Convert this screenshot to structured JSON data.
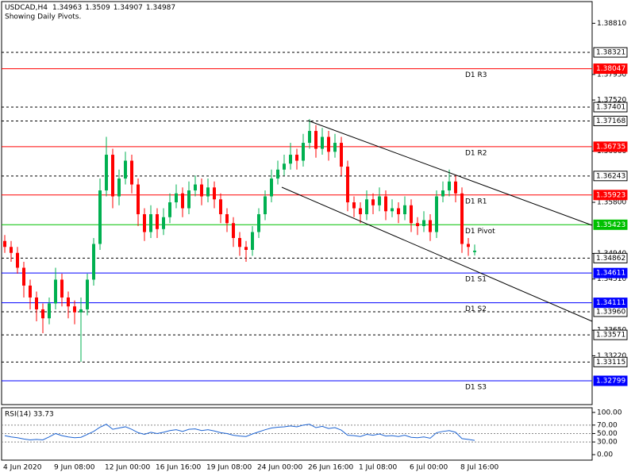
{
  "chart_data": [
    {
      "type": "candlestick",
      "symbol": "USDCAD,H4",
      "subtitle": "Showing Daily Pivots.",
      "up_color": "#00b050",
      "down_color": "#ff0000",
      "categories": [
        "4 Jun 2020",
        null,
        null,
        null,
        null,
        null,
        null,
        null,
        "9 Jun 08:00",
        null,
        null,
        null,
        null,
        null,
        null,
        null,
        "12 Jun 00:00",
        null,
        null,
        null,
        null,
        null,
        null,
        null,
        "16 Jun 16:00",
        null,
        null,
        null,
        null,
        null,
        null,
        null,
        "19 Jun 08:00",
        null,
        null,
        null,
        null,
        null,
        null,
        null,
        "24 Jun 00:00",
        null,
        null,
        null,
        null,
        null,
        null,
        null,
        "26 Jun 16:00",
        null,
        null,
        null,
        null,
        null,
        null,
        null,
        "1 Jul 08:00",
        null,
        null,
        null,
        null,
        null,
        null,
        null,
        "6 Jul 00:00",
        null,
        null,
        null,
        null,
        null,
        null,
        null,
        "8 Jul 16:00",
        null,
        null
      ],
      "candles": [
        [
          1.3515,
          1.3525,
          1.3495,
          1.3505
        ],
        [
          1.3505,
          1.3515,
          1.348,
          1.3495
        ],
        [
          1.3495,
          1.3505,
          1.346,
          1.347
        ],
        [
          1.347,
          1.348,
          1.342,
          1.344
        ],
        [
          1.344,
          1.345,
          1.34,
          1.342
        ],
        [
          1.342,
          1.343,
          1.338,
          1.34
        ],
        [
          1.34,
          1.341,
          1.336,
          1.3385
        ],
        [
          1.3385,
          1.342,
          1.3375,
          1.341
        ],
        [
          1.341,
          1.347,
          1.34,
          1.345
        ],
        [
          1.345,
          1.346,
          1.3405,
          1.342
        ],
        [
          1.342,
          1.343,
          1.3385,
          1.3405
        ],
        [
          1.3405,
          1.3415,
          1.3375,
          1.3395
        ],
        [
          1.3395,
          1.342,
          1.3312,
          1.34
        ],
        [
          1.34,
          1.346,
          1.339,
          1.345
        ],
        [
          1.345,
          1.352,
          1.344,
          1.351
        ],
        [
          1.351,
          1.362,
          1.35,
          1.36
        ],
        [
          1.36,
          1.369,
          1.359,
          1.366
        ],
        [
          1.366,
          1.367,
          1.357,
          1.359
        ],
        [
          1.359,
          1.3635,
          1.3575,
          1.362
        ],
        [
          1.362,
          1.3665,
          1.361,
          1.365
        ],
        [
          1.365,
          1.366,
          1.3595,
          1.361
        ],
        [
          1.361,
          1.362,
          1.354,
          1.356
        ],
        [
          1.356,
          1.357,
          1.3515,
          1.353
        ],
        [
          1.353,
          1.3575,
          1.352,
          1.356
        ],
        [
          1.356,
          1.357,
          1.352,
          1.3535
        ],
        [
          1.3535,
          1.357,
          1.3525,
          1.3555
        ],
        [
          1.3555,
          1.3595,
          1.3545,
          1.358
        ],
        [
          1.358,
          1.361,
          1.357,
          1.3595
        ],
        [
          1.3595,
          1.3605,
          1.3555,
          1.357
        ],
        [
          1.357,
          1.3615,
          1.356,
          1.36
        ],
        [
          1.36,
          1.3625,
          1.359,
          1.361
        ],
        [
          1.361,
          1.362,
          1.3575,
          1.359
        ],
        [
          1.359,
          1.362,
          1.358,
          1.3605
        ],
        [
          1.3605,
          1.3615,
          1.357,
          1.3585
        ],
        [
          1.3585,
          1.3595,
          1.3545,
          1.356
        ],
        [
          1.356,
          1.357,
          1.353,
          1.3545
        ],
        [
          1.3545,
          1.3555,
          1.3505,
          1.352
        ],
        [
          1.352,
          1.353,
          1.349,
          1.3505
        ],
        [
          1.3505,
          1.3515,
          1.348,
          1.35
        ],
        [
          1.35,
          1.354,
          1.349,
          1.353
        ],
        [
          1.353,
          1.357,
          1.352,
          1.356
        ],
        [
          1.356,
          1.36,
          1.355,
          1.359
        ],
        [
          1.359,
          1.3635,
          1.358,
          1.362
        ],
        [
          1.362,
          1.365,
          1.361,
          1.3635
        ],
        [
          1.3635,
          1.366,
          1.3625,
          1.3645
        ],
        [
          1.3645,
          1.368,
          1.3635,
          1.366
        ],
        [
          1.366,
          1.367,
          1.3635,
          1.365
        ],
        [
          1.365,
          1.3695,
          1.364,
          1.368
        ],
        [
          1.368,
          1.372,
          1.367,
          1.37
        ],
        [
          1.37,
          1.371,
          1.3655,
          1.367
        ],
        [
          1.367,
          1.3705,
          1.366,
          1.369
        ],
        [
          1.369,
          1.37,
          1.365,
          1.3665
        ],
        [
          1.3665,
          1.3695,
          1.3655,
          1.368
        ],
        [
          1.368,
          1.369,
          1.3625,
          1.364
        ],
        [
          1.364,
          1.365,
          1.3565,
          1.358
        ],
        [
          1.358,
          1.359,
          1.3555,
          1.357
        ],
        [
          1.357,
          1.358,
          1.3545,
          1.356
        ],
        [
          1.356,
          1.36,
          1.355,
          1.3585
        ],
        [
          1.3585,
          1.3595,
          1.356,
          1.3575
        ],
        [
          1.3575,
          1.3605,
          1.3565,
          1.359
        ],
        [
          1.359,
          1.36,
          1.355,
          1.3565
        ],
        [
          1.3565,
          1.3585,
          1.3555,
          1.357
        ],
        [
          1.357,
          1.358,
          1.3545,
          1.356
        ],
        [
          1.356,
          1.359,
          1.355,
          1.3575
        ],
        [
          1.3575,
          1.3585,
          1.353,
          1.3545
        ],
        [
          1.3545,
          1.3555,
          1.3525,
          1.354
        ],
        [
          1.354,
          1.3565,
          1.353,
          1.355
        ],
        [
          1.355,
          1.356,
          1.3515,
          1.353
        ],
        [
          1.353,
          1.36,
          1.352,
          1.359
        ],
        [
          1.359,
          1.3615,
          1.358,
          1.36
        ],
        [
          1.36,
          1.3635,
          1.359,
          1.3615
        ],
        [
          1.3615,
          1.3625,
          1.358,
          1.3595
        ],
        [
          1.3595,
          1.3605,
          1.3495,
          1.351
        ],
        [
          1.351,
          1.352,
          1.349,
          1.3505
        ],
        [
          1.34963,
          1.3509,
          1.34907,
          1.34987
        ]
      ],
      "ylim": [
        1.32399,
        1.39175
      ],
      "yticks": [
        {
          "value": 1.3881,
          "label": "1.38810"
        },
        {
          "value": 1.3795,
          "label": "1.37950"
        },
        {
          "value": 1.3752,
          "label": "1.37520"
        },
        {
          "value": 1.3666,
          "label": "1.36660"
        },
        {
          "value": 1.358,
          "label": "1.35800"
        },
        {
          "value": 1.3494,
          "label": "1.34940"
        },
        {
          "value": 1.3451,
          "label": "1.34510"
        },
        {
          "value": 1.3365,
          "label": "1.33650"
        },
        {
          "value": 1.3322,
          "label": "1.33220"
        }
      ],
      "levels": [
        {
          "value": 1.38321
        },
        {
          "value": 1.37401
        },
        {
          "value": 1.37168
        },
        {
          "value": 1.36243
        },
        {
          "value": 1.34862
        },
        {
          "value": {
            "value": 1.3396,
            "label": "1.33960"
          }
        },
        {
          "value": 1.33571
        },
        {
          "value": 1.33115
        },
        {
          "name": "D1 R3",
          "value": 1.38047,
          "color": "#ff0000"
        },
        {
          "name": "D1 R2",
          "value": 1.36735,
          "color": "#ff0000"
        },
        {
          "name": "D1 R1",
          "value": 1.35923,
          "color": "#ff0000"
        },
        {
          "name": "D1 Pivot",
          "value": 1.35423,
          "color": "#00c000"
        },
        {
          "name": "D1 S1",
          "value": 1.34611,
          "color": "#0000ff"
        },
        {
          "name": "D1 S2",
          "value": 1.34111,
          "color": "#0000ff"
        },
        {
          "name": "D1 S3",
          "value": 1.32799,
          "color": "#0000ff"
        }
      ]
    },
    {
      "type": "line",
      "title": "RSI(14) 33.73",
      "color": "#1e64d2",
      "values": [
        45,
        42,
        40,
        37,
        35,
        36,
        35,
        42,
        50,
        45,
        42,
        40,
        41,
        48,
        55,
        65,
        72,
        60,
        63,
        66,
        60,
        52,
        48,
        53,
        50,
        53,
        57,
        59,
        55,
        60,
        61,
        57,
        59,
        56,
        52,
        50,
        46,
        44,
        43,
        49,
        54,
        59,
        63,
        65,
        66,
        68,
        66,
        70,
        72,
        64,
        67,
        62,
        64,
        58,
        46,
        45,
        43,
        48,
        46,
        49,
        44,
        45,
        43,
        46,
        41,
        40,
        42,
        39,
        52,
        55,
        57,
        53,
        38,
        36,
        33.73
      ],
      "ylim": [
        -13,
        111
      ],
      "yticks": [
        {
          "value": 100,
          "label": "100.00"
        },
        {
          "value": 70,
          "label": "70.00"
        },
        {
          "value": 50,
          "label": "50.00"
        },
        {
          "value": 30,
          "label": "30.00"
        },
        {
          "value": 0,
          "label": "0.00"
        }
      ]
    }
  ]
}
